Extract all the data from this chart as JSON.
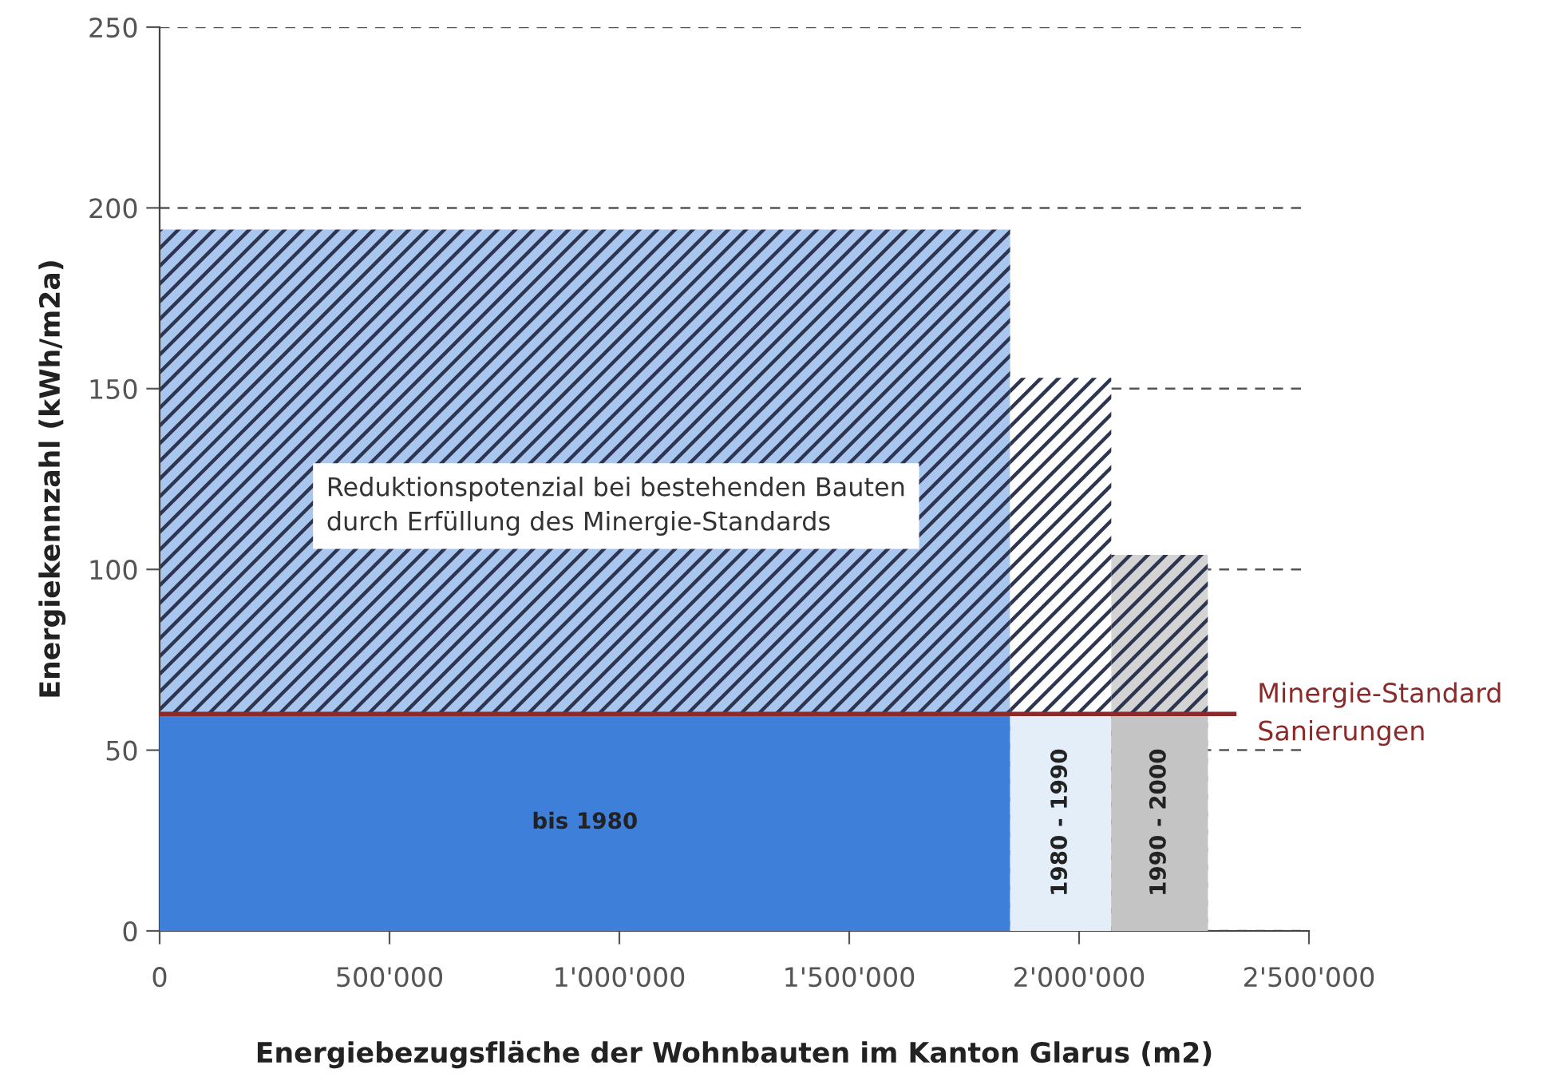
{
  "chart_data": {
    "type": "area",
    "xlabel": "Energiebezugsfläche der Wohnbauten im Kanton Glarus (m2)",
    "ylabel": "Energiekennzahl (kWh/m2a)",
    "series": [
      {
        "color": "#a9c6ee",
        "x": [
          0,
          1850000
        ],
        "values": [
          194,
          194
        ]
      },
      {
        "color": "#ffffff",
        "x": [
          1850000,
          2070000
        ],
        "values": [
          153,
          153
        ]
      },
      {
        "color": "#d3d3d3",
        "x": [
          2070000,
          2280000
        ],
        "values": [
          104,
          104
        ]
      },
      {
        "name": "bis 1980",
        "color": "#3d7fd9",
        "x": [
          0,
          1850000
        ],
        "values": [
          60,
          60
        ]
      },
      {
        "name": "1980 - 1990",
        "color": "#e4eef9",
        "x": [
          1850000,
          2070000
        ],
        "values": [
          60,
          60
        ]
      },
      {
        "name": "1990 - 2000",
        "color": "#c4c4c4",
        "x": [
          2070000,
          2280000
        ],
        "values": [
          60,
          60
        ]
      }
    ],
    "xlim": [
      0,
      2500000
    ],
    "ylim": [
      0,
      250
    ],
    "xticks": [
      0,
      {
        "value": 500000,
        "label": "500'000"
      },
      {
        "value": 1000000,
        "label": "1'000'000"
      },
      {
        "value": 1500000,
        "label": "1'500'000"
      },
      {
        "value": 2000000,
        "label": "2'000'000"
      },
      {
        "value": 2500000,
        "label": "2'500'000"
      }
    ],
    "yticks": [
      0,
      50,
      100,
      150,
      200,
      250
    ],
    "ref_lines": [
      {
        "axis": "y",
        "value": 60,
        "label": "Minergie-Standard\nSanierungen",
        "color": "#8b2a2a"
      }
    ],
    "annotations": [
      "Reduktionspotenzial bei bestehenden Bauten\ndurch Erfüllung des Minergie-Standards"
    ],
    "grid": "y",
    "line_style": "dashed",
    "legend": false
  }
}
